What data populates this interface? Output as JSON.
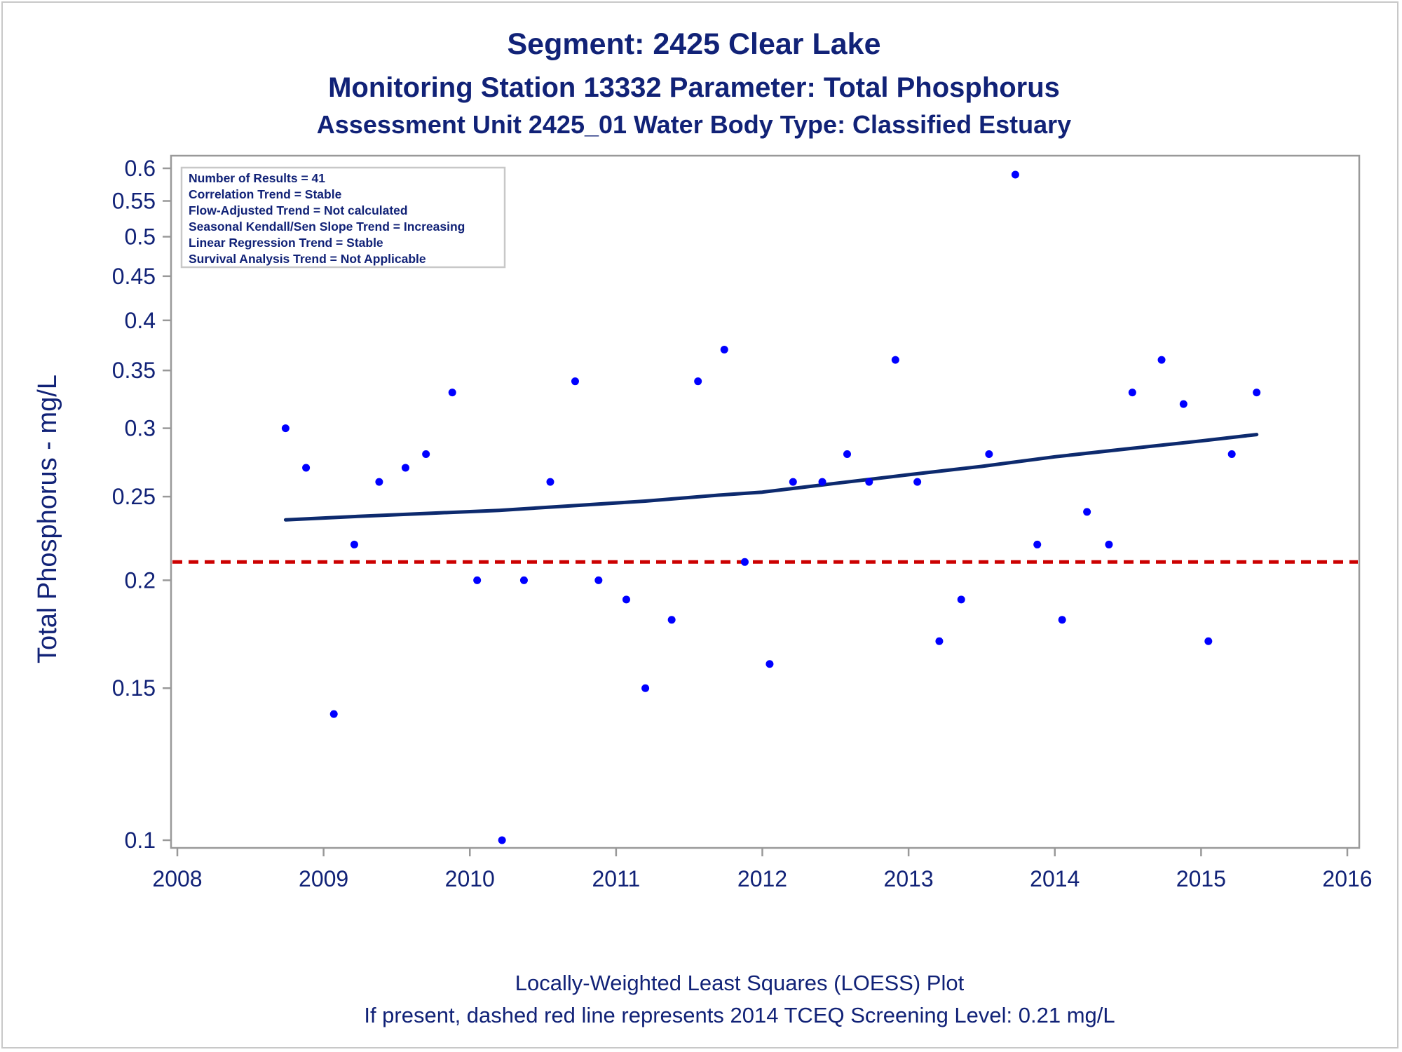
{
  "chart_data": {
    "type": "scatter",
    "title": "Segment: 2425  Clear Lake",
    "subtitle": "Monitoring Station 13332 Parameter: Total Phosphorus",
    "subtitle2": "Assessment Unit 2425_01   Water Body Type: Classified Estuary",
    "xlabel": "",
    "ylabel": "Total Phosphorus - mg/L",
    "xlim": [
      2008,
      2016
    ],
    "ylim": [
      0.1,
      0.6
    ],
    "yscale": "log",
    "xticks": [
      "2008",
      "2009",
      "2010",
      "2011",
      "2012",
      "2013",
      "2014",
      "2015",
      "2016"
    ],
    "yticks": [
      "0.1",
      "0.15",
      "0.2",
      "0.25",
      "0.3",
      "0.35",
      "0.4",
      "0.45",
      "0.5",
      "0.55",
      "0.6"
    ],
    "grid": false,
    "stats_box": [
      "Number of Results = 41",
      "Correlation Trend = Stable",
      "Flow-Adjusted Trend = Not calculated",
      "Seasonal Kendall/Sen Slope Trend = Increasing",
      "Linear Regression Trend = Stable",
      "Survival Analysis Trend = Not Applicable"
    ],
    "footnote1": "Locally-Weighted Least Squares (LOESS) Plot",
    "footnote2": "If present, dashed red line represents 2014 TCEQ Screening Level: 0.21 mg/L",
    "screening_level": 0.21,
    "colors": {
      "points": "#0000ff",
      "loess": "#0d2a6e",
      "screening": "#cc0000",
      "text": "#112277",
      "axis": "#999999"
    },
    "points": [
      {
        "x": 2008.74,
        "y": 0.3
      },
      {
        "x": 2008.88,
        "y": 0.27
      },
      {
        "x": 2009.07,
        "y": 0.14
      },
      {
        "x": 2009.21,
        "y": 0.22
      },
      {
        "x": 2009.38,
        "y": 0.26
      },
      {
        "x": 2009.56,
        "y": 0.27
      },
      {
        "x": 2009.7,
        "y": 0.28
      },
      {
        "x": 2009.88,
        "y": 0.33
      },
      {
        "x": 2010.05,
        "y": 0.2
      },
      {
        "x": 2010.22,
        "y": 0.1
      },
      {
        "x": 2010.37,
        "y": 0.2
      },
      {
        "x": 2010.55,
        "y": 0.26
      },
      {
        "x": 2010.72,
        "y": 0.34
      },
      {
        "x": 2010.88,
        "y": 0.2
      },
      {
        "x": 2011.07,
        "y": 0.19
      },
      {
        "x": 2011.2,
        "y": 0.15
      },
      {
        "x": 2011.38,
        "y": 0.18
      },
      {
        "x": 2011.56,
        "y": 0.34
      },
      {
        "x": 2011.74,
        "y": 0.37
      },
      {
        "x": 2011.88,
        "y": 0.21
      },
      {
        "x": 2012.05,
        "y": 0.16
      },
      {
        "x": 2012.21,
        "y": 0.26
      },
      {
        "x": 2012.41,
        "y": 0.26
      },
      {
        "x": 2012.58,
        "y": 0.28
      },
      {
        "x": 2012.73,
        "y": 0.26
      },
      {
        "x": 2012.91,
        "y": 0.36
      },
      {
        "x": 2013.06,
        "y": 0.26
      },
      {
        "x": 2013.21,
        "y": 0.17
      },
      {
        "x": 2013.36,
        "y": 0.19
      },
      {
        "x": 2013.55,
        "y": 0.28
      },
      {
        "x": 2013.73,
        "y": 0.59
      },
      {
        "x": 2013.88,
        "y": 0.22
      },
      {
        "x": 2014.05,
        "y": 0.18
      },
      {
        "x": 2014.22,
        "y": 0.24
      },
      {
        "x": 2014.37,
        "y": 0.22
      },
      {
        "x": 2014.53,
        "y": 0.33
      },
      {
        "x": 2014.73,
        "y": 0.36
      },
      {
        "x": 2014.88,
        "y": 0.32
      },
      {
        "x": 2015.05,
        "y": 0.17
      },
      {
        "x": 2015.21,
        "y": 0.28
      },
      {
        "x": 2015.38,
        "y": 0.33
      }
    ],
    "loess": [
      {
        "x": 2008.74,
        "y": 0.235
      },
      {
        "x": 2009.2,
        "y": 0.237
      },
      {
        "x": 2009.7,
        "y": 0.239
      },
      {
        "x": 2010.2,
        "y": 0.241
      },
      {
        "x": 2010.7,
        "y": 0.244
      },
      {
        "x": 2011.2,
        "y": 0.247
      },
      {
        "x": 2011.7,
        "y": 0.251
      },
      {
        "x": 2012.0,
        "y": 0.253
      },
      {
        "x": 2012.5,
        "y": 0.259
      },
      {
        "x": 2013.0,
        "y": 0.265
      },
      {
        "x": 2013.5,
        "y": 0.271
      },
      {
        "x": 2014.0,
        "y": 0.278
      },
      {
        "x": 2014.5,
        "y": 0.284
      },
      {
        "x": 2015.0,
        "y": 0.29
      },
      {
        "x": 2015.38,
        "y": 0.295
      }
    ]
  }
}
